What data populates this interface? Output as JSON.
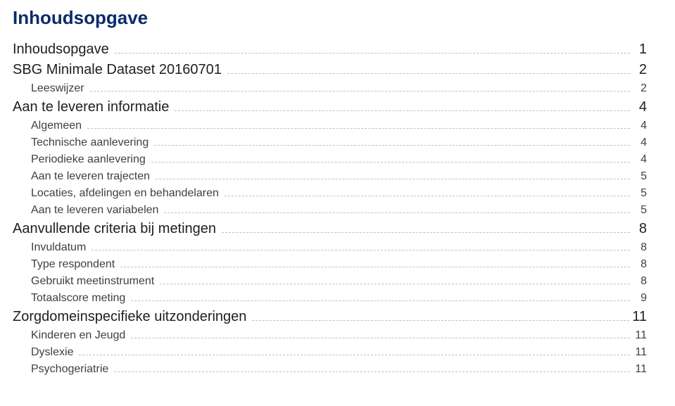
{
  "doc": {
    "title": "Inhoudsopgave",
    "text_color_title": "#0b2b6b",
    "text_color_lvl0": "#202020",
    "text_color_lvl1": "#404040",
    "dot_color": "#bfbfbf",
    "background_color": "#ffffff",
    "font_family": "Arial"
  },
  "toc": [
    {
      "level": 0,
      "label": "Inhoudsopgave",
      "page": "1"
    },
    {
      "level": 0,
      "label": "SBG Minimale Dataset 20160701",
      "page": "2"
    },
    {
      "level": 1,
      "label": "Leeswijzer",
      "page": "2"
    },
    {
      "level": 0,
      "label": "Aan te leveren informatie",
      "page": "4"
    },
    {
      "level": 1,
      "label": "Algemeen",
      "page": "4"
    },
    {
      "level": 1,
      "label": "Technische aanlevering",
      "page": "4"
    },
    {
      "level": 1,
      "label": "Periodieke aanlevering",
      "page": "4"
    },
    {
      "level": 1,
      "label": "Aan te leveren trajecten",
      "page": "5"
    },
    {
      "level": 1,
      "label": "Locaties, afdelingen en behandelaren",
      "page": "5"
    },
    {
      "level": 1,
      "label": "Aan te leveren variabelen",
      "page": "5"
    },
    {
      "level": 0,
      "label": "Aanvullende criteria bij metingen",
      "page": "8"
    },
    {
      "level": 1,
      "label": "Invuldatum",
      "page": "8"
    },
    {
      "level": 1,
      "label": "Type respondent",
      "page": "8"
    },
    {
      "level": 1,
      "label": "Gebruikt meetinstrument",
      "page": "8"
    },
    {
      "level": 1,
      "label": "Totaalscore meting",
      "page": "9"
    },
    {
      "level": 0,
      "label": "Zorgdomeinspecifieke uitzonderingen",
      "page": "11"
    },
    {
      "level": 1,
      "label": "Kinderen en Jeugd",
      "page": "11"
    },
    {
      "level": 1,
      "label": "Dyslexie",
      "page": "11"
    },
    {
      "level": 1,
      "label": "Psychogeriatrie",
      "page": "11"
    }
  ]
}
